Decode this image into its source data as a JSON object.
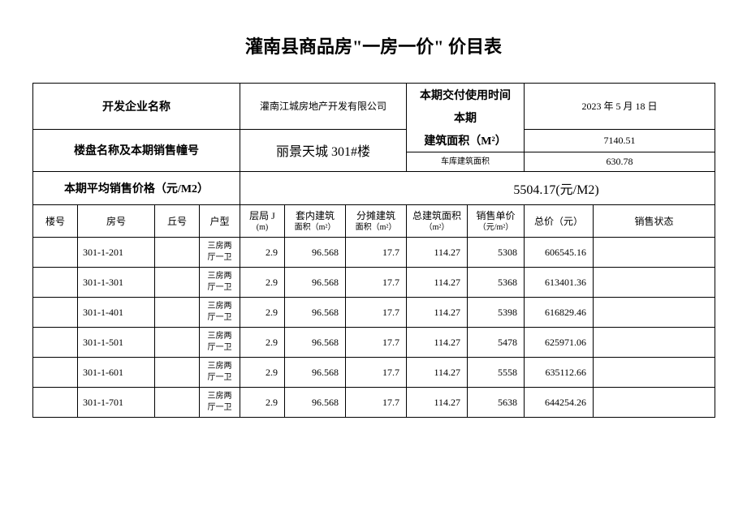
{
  "title": "灌南县商品房\"一房一价\" 价目表",
  "meta": {
    "dev_label": "开发企业名称",
    "dev_value": "灌南江城房地产开发有限公司",
    "deliver_label": "本期交付使用时间",
    "deliver_value": "2023 年 5 月 18 日",
    "proj_label": "楼盘名称及本期销售幢号",
    "proj_value": "丽景天城 301#楼",
    "area_label": "本期\n建筑面积（M²）",
    "area_label_line1": "本期",
    "area_label_line2": "建筑面积（M²）",
    "area_value": "7140.51",
    "garage_label": "车库建筑面积",
    "garage_value": "630.78",
    "avg_label": "本期平均销售价格（元/M2）",
    "avg_value": "5504.17(元/M2)"
  },
  "cols": {
    "c1": "楼号",
    "c2": "房号",
    "c3": "丘号",
    "c4": "户型",
    "c5a": "层局 J",
    "c5b": "(m)",
    "c6a": "套内建筑",
    "c6b": "面积（m²）",
    "c7a": "分摊建筑",
    "c7b": "面积（m²）",
    "c8a": "总建筑面积",
    "c8b": "（m²）",
    "c9a": "销售单价",
    "c9b": "（元/m²）",
    "c10": "总价（元）",
    "c11": "销售状态"
  },
  "rows": [
    {
      "lou": "",
      "room": "301-1-201",
      "qiu": "",
      "hx_l1": "三房两",
      "hx_l2": "厅一卫",
      "cg": "2.9",
      "tn": "96.568",
      "ft": "17.7",
      "zj": "114.27",
      "dj": "5308",
      "zjp": "606545.16",
      "zt": ""
    },
    {
      "lou": "",
      "room": "301-1-301",
      "qiu": "",
      "hx_l1": "三房两",
      "hx_l2": "厅一卫",
      "cg": "2.9",
      "tn": "96.568",
      "ft": "17.7",
      "zj": "114.27",
      "dj": "5368",
      "zjp": "613401.36",
      "zt": ""
    },
    {
      "lou": "",
      "room": "301-1-401",
      "qiu": "",
      "hx_l1": "三房两",
      "hx_l2": "厅一卫",
      "cg": "2.9",
      "tn": "96.568",
      "ft": "17.7",
      "zj": "114.27",
      "dj": "5398",
      "zjp": "616829.46",
      "zt": ""
    },
    {
      "lou": "",
      "room": "301-1-501",
      "qiu": "",
      "hx_l1": "三房两",
      "hx_l2": "厅一卫",
      "cg": "2.9",
      "tn": "96.568",
      "ft": "17.7",
      "zj": "114.27",
      "dj": "5478",
      "zjp": "625971.06",
      "zt": ""
    },
    {
      "lou": "",
      "room": "301-1-601",
      "qiu": "",
      "hx_l1": "三房两",
      "hx_l2": "厅一卫",
      "cg": "2.9",
      "tn": "96.568",
      "ft": "17.7",
      "zj": "114.27",
      "dj": "5558",
      "zjp": "635112.66",
      "zt": ""
    },
    {
      "lou": "",
      "room": "301-1-701",
      "qiu": "",
      "hx_l1": "三房两",
      "hx_l2": "厅一卫",
      "cg": "2.9",
      "tn": "96.568",
      "ft": "17.7",
      "zj": "114.27",
      "dj": "5638",
      "zjp": "644254.26",
      "zt": ""
    }
  ],
  "style": {
    "border_color": "#000000",
    "bg_color": "#ffffff",
    "text_color": "#000000",
    "title_fontsize": 22,
    "header_fontsize": 14,
    "body_fontsize": 12,
    "small_fontsize": 10,
    "font_family": "SimSun"
  }
}
